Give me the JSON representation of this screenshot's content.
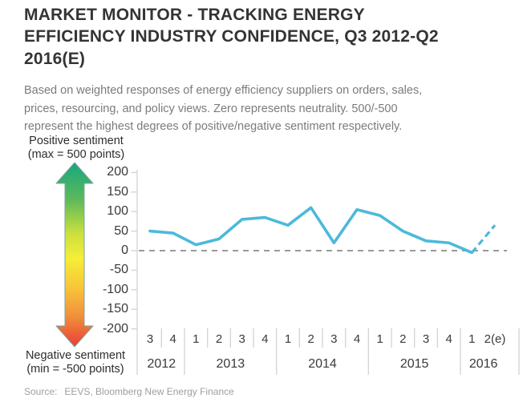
{
  "header": {
    "title_lines": [
      "MARKET MONITOR - TRACKING ENERGY",
      "EFFICIENCY INDUSTRY CONFIDENCE, Q3 2012-Q2",
      "2016(E)"
    ],
    "subtitle_lines": [
      "Based on weighted responses of energy efficiency suppliers on orders, sales,",
      "prices, resourcing, and policy views. Zero represents neutrality. 500/-500",
      "represent the highest degrees of positive/negative sentiment respectively."
    ]
  },
  "gradient_arrow": {
    "positive_label": "Positive sentiment",
    "positive_sublabel": "(max = 500 points)",
    "negative_label": "Negative sentiment",
    "negative_sublabel": "(min = -500 points)",
    "top_color": "#17a77e",
    "mid_color": "#f6ee37",
    "bottom_color": "#e93d38"
  },
  "source_line": {
    "label": "Source:",
    "text": "EEVS, Bloomberg New Energy Finance"
  },
  "chart_data": {
    "type": "line",
    "title": "MARKET MONITOR - TRACKING ENERGY EFFICIENCY INDUSTRY CONFIDENCE, Q3 2012-Q2 2016(E)",
    "categories": [
      "Q3 2012",
      "Q4 2012",
      "Q1 2013",
      "Q2 2013",
      "Q3 2013",
      "Q4 2013",
      "Q1 2014",
      "Q2 2014",
      "Q3 2014",
      "Q4 2014",
      "Q1 2015",
      "Q2 2015",
      "Q3 2015",
      "Q4 2015",
      "Q1 2016",
      "Q2 2016(e)"
    ],
    "quarter_labels": [
      "3",
      "4",
      "1",
      "2",
      "3",
      "4",
      "1",
      "2",
      "3",
      "4",
      "1",
      "2",
      "3",
      "4",
      "1",
      "2(e)"
    ],
    "year_groups": [
      {
        "label": "2012",
        "count": 2
      },
      {
        "label": "2013",
        "count": 4
      },
      {
        "label": "2014",
        "count": 4
      },
      {
        "label": "2015",
        "count": 4
      },
      {
        "label": "2016",
        "count": 2
      }
    ],
    "values": [
      50,
      45,
      15,
      30,
      80,
      85,
      65,
      110,
      20,
      105,
      90,
      50,
      25,
      20,
      -5,
      65
    ],
    "last_point_estimated": true,
    "ylim": [
      -200,
      200
    ],
    "yticks": [
      200,
      150,
      100,
      50,
      0,
      -50,
      -100,
      -150,
      -200
    ],
    "zero_line_style": "dashed",
    "line_color": "#4cb9da",
    "axis_color": "#d5d5d5",
    "zero_line_color": "#9a9a9a",
    "grid": false,
    "legend": false
  }
}
